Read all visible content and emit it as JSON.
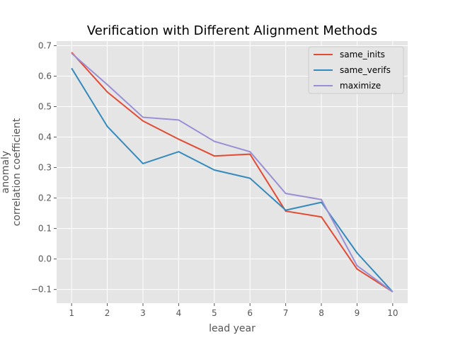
{
  "chart_data": {
    "type": "line",
    "title": "Verification with Different Alignment Methods",
    "xlabel": "lead year",
    "ylabel": [
      "anomaly",
      "correlation coefficient"
    ],
    "x": [
      1,
      2,
      3,
      4,
      5,
      6,
      7,
      8,
      9,
      10
    ],
    "xlim": [
      0.58,
      10.42
    ],
    "ylim": [
      -0.145,
      0.715
    ],
    "xticks": [
      1,
      2,
      3,
      4,
      5,
      6,
      7,
      8,
      9,
      10
    ],
    "yticks": [
      -0.1,
      0.0,
      0.1,
      0.2,
      0.3,
      0.4,
      0.5,
      0.6,
      0.7
    ],
    "ytick_labels": [
      "−0.1",
      "0.0",
      "0.1",
      "0.2",
      "0.3",
      "0.4",
      "0.5",
      "0.6",
      "0.7"
    ],
    "grid": true,
    "legend_position": "top-right",
    "series": [
      {
        "name": "same_inits",
        "color": "#e24a33",
        "values": [
          0.678,
          0.548,
          0.453,
          0.393,
          0.338,
          0.344,
          0.157,
          0.138,
          -0.033,
          -0.108
        ]
      },
      {
        "name": "same_verifs",
        "color": "#348abd",
        "values": [
          0.626,
          0.435,
          0.313,
          0.352,
          0.292,
          0.265,
          0.16,
          0.186,
          0.02,
          -0.108
        ]
      },
      {
        "name": "maximize",
        "color": "#988ed5",
        "values": [
          0.675,
          0.572,
          0.465,
          0.456,
          0.386,
          0.352,
          0.215,
          0.195,
          -0.022,
          -0.108
        ]
      }
    ]
  }
}
